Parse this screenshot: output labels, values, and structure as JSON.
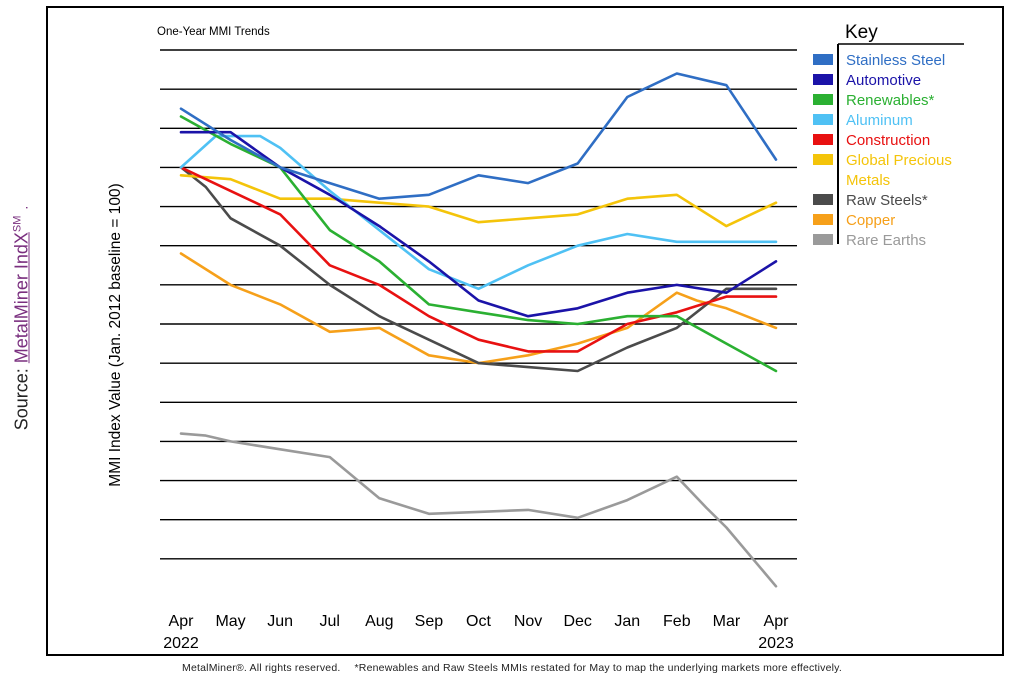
{
  "source": {
    "prefix": "Source: ",
    "link_text": "MetalMiner IndX",
    "superscript": "SM",
    "suffix": "."
  },
  "footer": {
    "copyright": "MetalMiner®. All rights reserved.",
    "note": "*Renewables and Raw Steels MMIs restated for May to map the underlying markets more effectively."
  },
  "colors": {
    "frame": "#000000",
    "gridline": "#000000",
    "source_link": "#7a2f7f"
  },
  "chart_data": {
    "type": "line",
    "title": "One-Year MMI Trends",
    "ylabel": "MMI Index Value (Jan. 2012 baseline = 100)",
    "xlabel": "",
    "ylim": [
      0,
      14
    ],
    "grid": true,
    "legend_title": "Key",
    "legend_position": "right",
    "x_tick_labels": [
      "Apr",
      "May",
      "Jun",
      "Jul",
      "Aug",
      "Sep",
      "Oct",
      "Nov",
      "Dec",
      "Jan",
      "Feb",
      "Mar",
      "Apr"
    ],
    "x_year_labels": [
      {
        "index": 0,
        "label": "2022"
      },
      {
        "index": 12,
        "label": "2023"
      }
    ],
    "legend_entries": [
      {
        "name": "Stainless Steel",
        "label_lines": [
          "Stainless Steel"
        ],
        "color": "#2f6ec4"
      },
      {
        "name": "Automotive",
        "label_lines": [
          "Automotive"
        ],
        "color": "#1b13a8"
      },
      {
        "name": "Renewables*",
        "label_lines": [
          "Renewables*"
        ],
        "color": "#2bb032"
      },
      {
        "name": "Aluminum",
        "label_lines": [
          "Aluminum"
        ],
        "color": "#4fc1f4"
      },
      {
        "name": "Construction",
        "label_lines": [
          "Construction"
        ],
        "color": "#e81111"
      },
      {
        "name": "Global Precious Metals",
        "label_lines": [
          "Global Precious",
          "Metals"
        ],
        "color": "#f4c40a"
      },
      {
        "name": "Raw Steels*",
        "label_lines": [
          "Raw Steels*"
        ],
        "color": "#4b4b4b"
      },
      {
        "name": "Copper",
        "label_lines": [
          "Copper"
        ],
        "color": "#f6a01a"
      },
      {
        "name": "Rare Earths",
        "label_lines": [
          "Rare Earths"
        ],
        "color": "#9a9a9a"
      }
    ],
    "series": [
      {
        "name": "Rare Earths",
        "color": "#9a9a9a",
        "x": [
          0,
          0.5,
          1,
          2,
          3,
          4,
          5,
          6,
          7,
          8,
          9,
          10,
          10.6,
          11,
          12
        ],
        "y": [
          4.2,
          4.15,
          4.0,
          3.8,
          3.6,
          2.55,
          2.15,
          2.2,
          2.25,
          2.05,
          2.5,
          3.1,
          2.3,
          1.8,
          0.3
        ]
      },
      {
        "name": "Copper",
        "color": "#f6a01a",
        "x": [
          0,
          1,
          2,
          3,
          4,
          5,
          6,
          7,
          8,
          9,
          10,
          10.4,
          11,
          12
        ],
        "y": [
          8.8,
          8.0,
          7.5,
          6.8,
          6.9,
          6.2,
          6.0,
          6.2,
          6.5,
          6.9,
          7.8,
          7.6,
          7.4,
          6.9
        ]
      },
      {
        "name": "Raw Steels*",
        "color": "#4b4b4b",
        "x": [
          0,
          0.5,
          1,
          2,
          3,
          4,
          5,
          6,
          7,
          8,
          9,
          10,
          11,
          12
        ],
        "y": [
          11.0,
          10.5,
          9.7,
          9.0,
          8.0,
          7.2,
          6.6,
          6.0,
          5.9,
          5.8,
          6.4,
          6.9,
          7.9,
          7.9
        ]
      },
      {
        "name": "Global Precious Metals",
        "color": "#f4c40a",
        "x": [
          0,
          1,
          2,
          3,
          4,
          5,
          6,
          7,
          8,
          9,
          10,
          11,
          12
        ],
        "y": [
          10.8,
          10.7,
          10.2,
          10.2,
          10.1,
          10.0,
          9.6,
          9.7,
          9.8,
          10.2,
          10.3,
          9.5,
          10.1
        ]
      },
      {
        "name": "Construction",
        "color": "#e81111",
        "x": [
          0,
          1,
          2,
          3,
          4,
          5,
          6,
          7,
          8,
          9,
          10,
          11,
          12
        ],
        "y": [
          11.0,
          10.4,
          9.8,
          8.5,
          8.0,
          7.2,
          6.6,
          6.3,
          6.3,
          7.0,
          7.3,
          7.7,
          7.7
        ]
      },
      {
        "name": "Aluminum",
        "color": "#4fc1f4",
        "x": [
          0,
          0.7,
          1.6,
          2,
          3,
          4,
          5,
          6,
          7,
          8,
          9,
          10,
          11,
          12
        ],
        "y": [
          11.0,
          11.8,
          11.8,
          11.5,
          10.4,
          9.4,
          8.4,
          7.9,
          8.5,
          9.0,
          9.3,
          9.1,
          9.1,
          9.1
        ]
      },
      {
        "name": "Renewables*",
        "color": "#2bb032",
        "x": [
          0,
          1,
          2,
          3,
          4,
          5,
          6,
          7,
          8,
          9,
          10,
          11,
          12
        ],
        "y": [
          12.3,
          11.6,
          11.0,
          9.4,
          8.6,
          7.5,
          7.3,
          7.1,
          7.0,
          7.2,
          7.2,
          6.5,
          5.8
        ]
      },
      {
        "name": "Automotive",
        "color": "#1b13a8",
        "x": [
          0,
          1,
          2,
          3,
          4,
          5,
          6,
          7,
          8,
          9,
          10,
          11,
          12
        ],
        "y": [
          11.9,
          11.9,
          11.0,
          10.3,
          9.5,
          8.6,
          7.6,
          7.2,
          7.4,
          7.8,
          8.0,
          7.8,
          8.6
        ]
      },
      {
        "name": "Stainless Steel",
        "color": "#2f6ec4",
        "x": [
          0,
          1,
          2,
          3,
          4,
          5,
          6,
          7,
          8,
          9,
          10,
          11,
          12
        ],
        "y": [
          12.5,
          11.7,
          11.0,
          10.6,
          10.2,
          10.3,
          10.8,
          10.6,
          11.1,
          12.8,
          13.4,
          13.1,
          11.2
        ]
      }
    ]
  }
}
